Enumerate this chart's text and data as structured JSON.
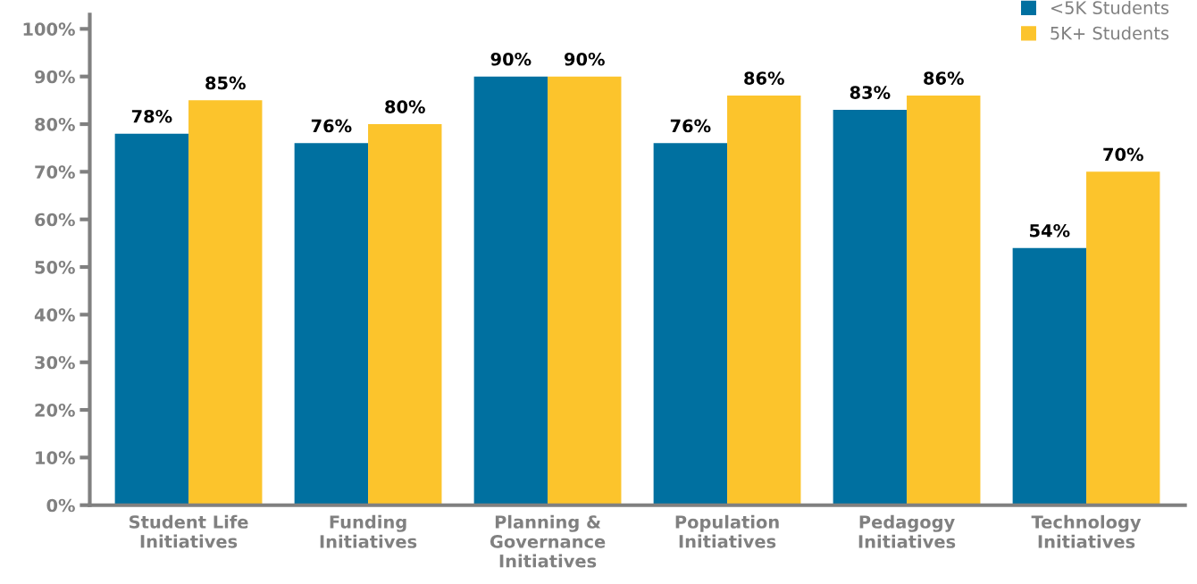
{
  "chart_data": {
    "type": "bar",
    "categories": [
      "Student Life\nInitiatives",
      "Funding\nInitiatives",
      "Planning &\nGovernance\nInitiatives",
      "Population\nInitiatives",
      "Pedagogy\nInitiatives",
      "Technology\nInitiatives"
    ],
    "series": [
      {
        "name": "<5K Students",
        "color": "#0070a0",
        "values": [
          78,
          76,
          90,
          76,
          83,
          54
        ]
      },
      {
        "name": "5K+ Students",
        "color": "#fcc42c",
        "values": [
          85,
          80,
          90,
          86,
          86,
          70
        ]
      }
    ],
    "ylim": [
      0,
      103
    ],
    "yticks": [
      {
        "value": 0,
        "label": "0%"
      },
      {
        "value": 10,
        "label": "10%"
      },
      {
        "value": 20,
        "label": "20%"
      },
      {
        "value": 30,
        "label": "30%"
      },
      {
        "value": 40,
        "label": "40%"
      },
      {
        "value": 50,
        "label": "50%"
      },
      {
        "value": 60,
        "label": "60%"
      },
      {
        "value": 70,
        "label": "70%"
      },
      {
        "value": 80,
        "label": "80%"
      },
      {
        "value": 90,
        "label": "90%"
      },
      {
        "value": 100,
        "label": "100%"
      }
    ],
    "value_labels": [
      [
        "78%",
        "76%",
        "90%",
        "76%",
        "83%",
        "54%"
      ],
      [
        "85%",
        "80%",
        "90%",
        "86%",
        "86%",
        "70%"
      ]
    ],
    "grid": false,
    "legend": "top right"
  }
}
